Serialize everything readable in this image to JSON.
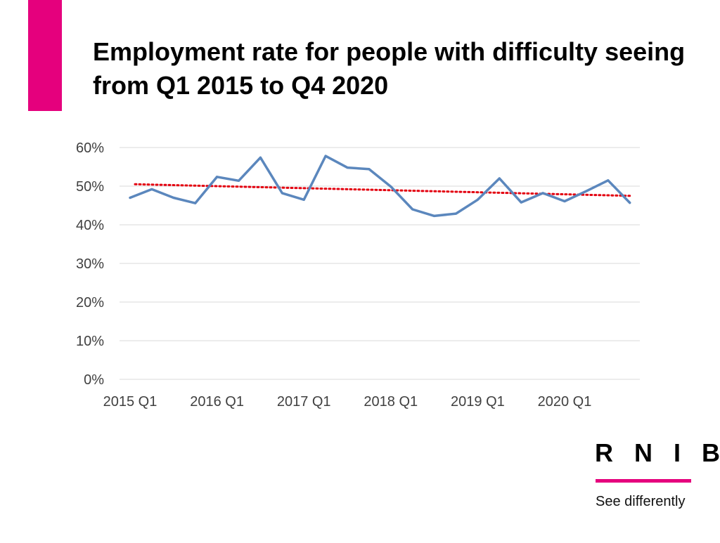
{
  "slide": {
    "title": "Employment rate for people with difficulty seeing from Q1 2015 to Q4 2020"
  },
  "brand": {
    "name": "R N I B",
    "tagline": "See differently"
  },
  "colors": {
    "accent": "#E5007D",
    "series_line": "#5B87BD",
    "trendline": "#E3000F",
    "gridline": "#D9D9D9",
    "axis_text": "#404040"
  },
  "chart_data": {
    "type": "line",
    "title": "Employment rate for people with difficulty seeing from Q1 2015 to Q4 2020",
    "xlabel": "",
    "ylabel": "",
    "ylim": [
      0,
      60
    ],
    "y_ticks": [
      "0%",
      "10%",
      "20%",
      "30%",
      "40%",
      "50%",
      "60%"
    ],
    "x_tick_labels": [
      "2015 Q1",
      "2016 Q1",
      "2017 Q1",
      "2018 Q1",
      "2019 Q1",
      "2020 Q1"
    ],
    "categories": [
      "2015 Q1",
      "2015 Q2",
      "2015 Q3",
      "2015 Q4",
      "2016 Q1",
      "2016 Q2",
      "2016 Q3",
      "2016 Q4",
      "2017 Q1",
      "2017 Q2",
      "2017 Q3",
      "2017 Q4",
      "2018 Q1",
      "2018 Q2",
      "2018 Q3",
      "2018 Q4",
      "2019 Q1",
      "2019 Q2",
      "2019 Q3",
      "2019 Q4",
      "2020 Q1",
      "2020 Q2",
      "2020 Q3",
      "2020 Q4"
    ],
    "series": [
      {
        "name": "Employment rate",
        "values": [
          47.0,
          49.2,
          47.0,
          45.6,
          52.4,
          51.4,
          57.4,
          48.2,
          46.5,
          57.8,
          54.8,
          54.4,
          49.9,
          44.0,
          42.3,
          42.9,
          46.5,
          52.0,
          45.8,
          48.2,
          46.1,
          48.7,
          51.5,
          45.7
        ]
      }
    ],
    "trendline": {
      "type": "linear",
      "start": 50.5,
      "end": 47.5
    },
    "grid": true,
    "legend": "none"
  }
}
